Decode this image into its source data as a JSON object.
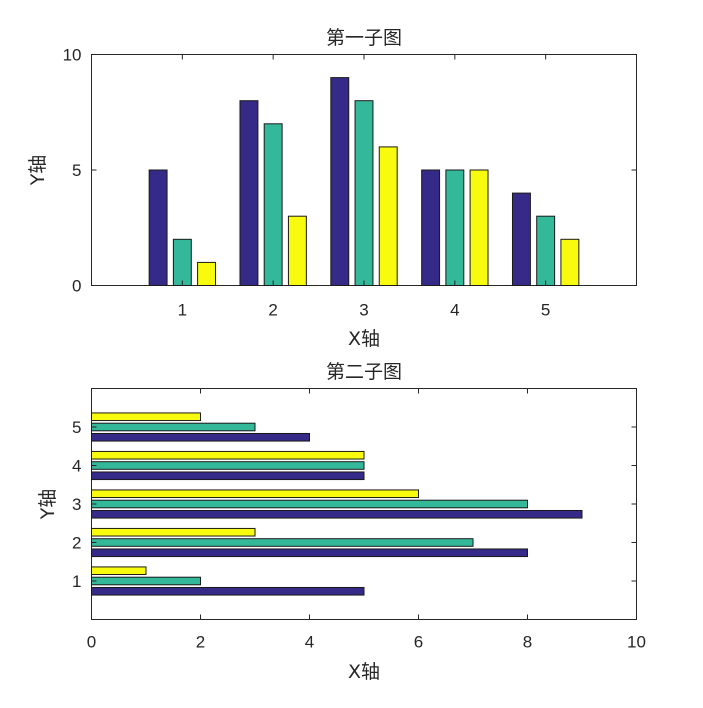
{
  "chart_data": [
    {
      "type": "bar",
      "orientation": "vertical",
      "title": "第一子图",
      "xlabel": "X轴",
      "ylabel": "Y轴",
      "categories": [
        1,
        2,
        3,
        4,
        5
      ],
      "xlim": [
        0,
        6
      ],
      "ylim": [
        0,
        10
      ],
      "yticks": [
        0,
        5,
        10
      ],
      "grid": false,
      "series": [
        {
          "values": [
            5,
            8,
            9,
            5,
            4
          ],
          "color": "#352a87"
        },
        {
          "values": [
            2,
            7,
            8,
            5,
            3
          ],
          "color": "#33b89a"
        },
        {
          "values": [
            1,
            3,
            6,
            5,
            2
          ],
          "color": "#f9fb0e"
        }
      ]
    },
    {
      "type": "bar",
      "orientation": "horizontal",
      "title": "第二子图",
      "xlabel": "X轴",
      "ylabel": "Y轴",
      "categories": [
        1,
        2,
        3,
        4,
        5
      ],
      "xlim": [
        0,
        10
      ],
      "ylim": [
        0,
        6
      ],
      "xticks": [
        0,
        2,
        4,
        6,
        8,
        10
      ],
      "grid": false,
      "series": [
        {
          "values": [
            5,
            8,
            9,
            5,
            4
          ],
          "color": "#352a87"
        },
        {
          "values": [
            2,
            7,
            8,
            5,
            3
          ],
          "color": "#33b89a"
        },
        {
          "values": [
            1,
            3,
            6,
            5,
            2
          ],
          "color": "#f9fb0e"
        }
      ]
    }
  ]
}
